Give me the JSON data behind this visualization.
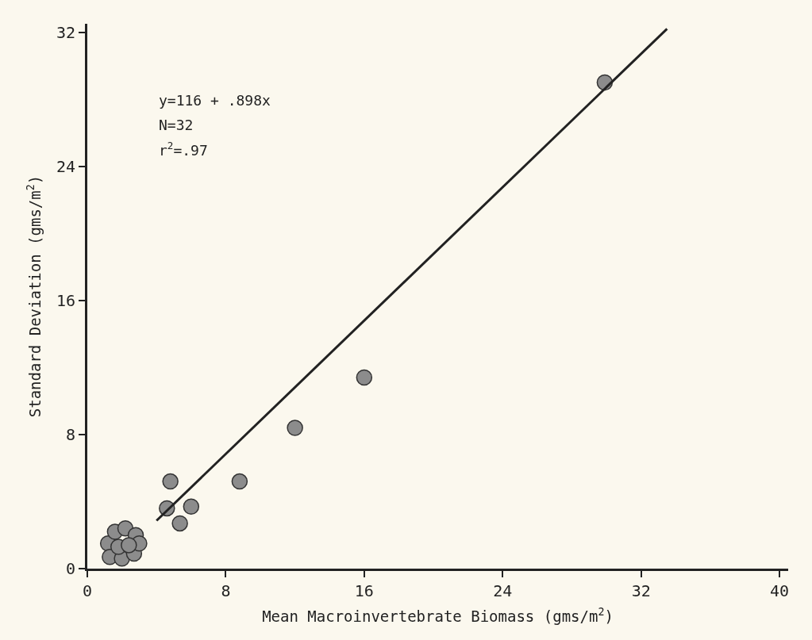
{
  "chart_data": {
    "type": "scatter",
    "xlabel": "Mean Macroinvertebrate Biomass (gms/m$^{2}$)",
    "ylabel": "Standard Deviation (gms/m$^{2}$)",
    "xlim": [
      0,
      40.5
    ],
    "ylim": [
      0,
      32.5
    ],
    "xticks": [
      0,
      8,
      16,
      24,
      32,
      40
    ],
    "yticks": [
      0,
      8,
      16,
      24,
      32
    ],
    "grid": false,
    "annotations": [
      "y=116 + .898x",
      "N=32",
      "r$^{2}$=.97"
    ],
    "series": [
      {
        "marker": "circle",
        "color": "#8c8c8c",
        "x": [
          1.2,
          1.6,
          2.2,
          2.8,
          1.3,
          2.0,
          2.7,
          3.0,
          1.8,
          2.4,
          4.6,
          6.0,
          5.35,
          4.8,
          8.8,
          12.0,
          16.0,
          29.9
        ],
        "values": [
          1.5,
          2.2,
          2.4,
          2.0,
          0.7,
          0.6,
          0.9,
          1.5,
          1.3,
          1.4,
          3.6,
          3.7,
          2.7,
          5.2,
          5.2,
          8.4,
          11.4,
          29.0
        ]
      },
      {
        "type": "line",
        "marker": "none",
        "color": "#222222",
        "line_style": "solid",
        "x": [
          4.0,
          33.5
        ],
        "values": [
          2.86,
          32.2
        ]
      }
    ]
  }
}
